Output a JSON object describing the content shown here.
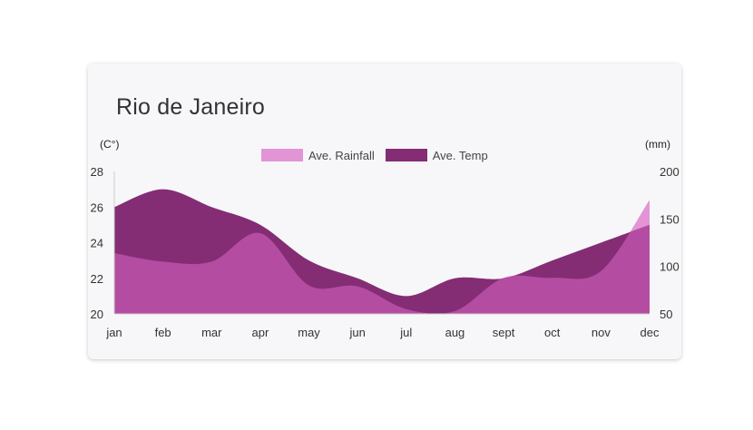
{
  "card": {
    "title": "Rio de Janeiro"
  },
  "chart_data": {
    "type": "area",
    "title": "Rio de Janeiro",
    "categories": [
      "jan",
      "feb",
      "mar",
      "apr",
      "may",
      "jun",
      "jul",
      "aug",
      "sept",
      "oct",
      "nov",
      "dec"
    ],
    "y_left": {
      "label": "(C°)",
      "range": [
        20,
        28
      ],
      "ticks": [
        "28",
        "26",
        "24",
        "22",
        "20"
      ]
    },
    "y_right": {
      "label": "(mm)",
      "range": [
        50,
        200
      ],
      "ticks": [
        "200",
        "150",
        "100",
        "50"
      ]
    },
    "legend_position": "top-center",
    "grid": false,
    "series": [
      {
        "name": "Ave. Temp",
        "axis": "left",
        "color": "#842d74",
        "values": [
          26,
          27,
          26,
          25,
          23,
          22,
          21,
          22,
          22,
          23,
          24,
          25
        ]
      },
      {
        "name": "Ave. Rainfall",
        "axis": "right",
        "color": "#e294d4",
        "values": [
          114,
          105,
          105,
          135,
          80,
          79,
          55,
          53,
          88,
          88,
          95,
          170
        ]
      }
    ]
  },
  "colors": {
    "temp": "#842d74",
    "rainfall": "#e294d4",
    "overlap": "#b44ca2"
  }
}
